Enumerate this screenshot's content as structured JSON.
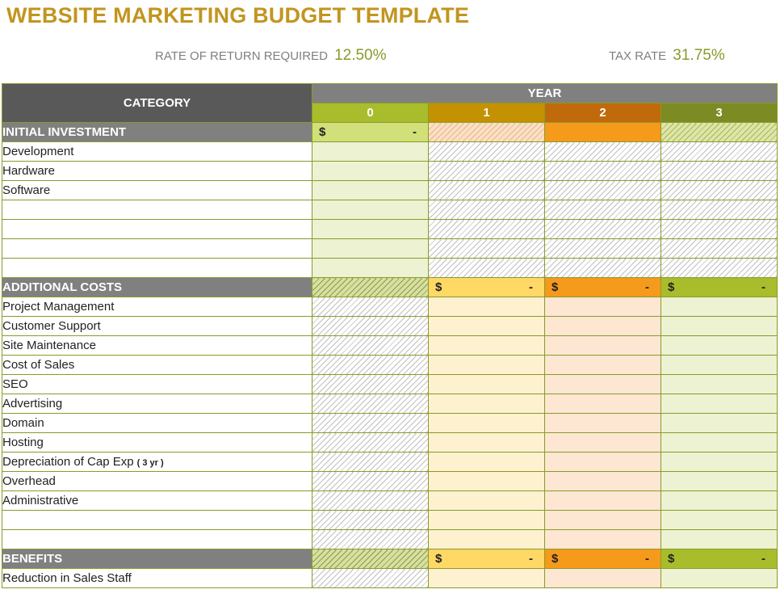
{
  "title": "WEBSITE MARKETING BUDGET TEMPLATE",
  "rate_of_return": {
    "label": "RATE OF RETURN REQUIRED",
    "value": "12.50%"
  },
  "tax_rate": {
    "label": "TAX RATE",
    "value": "31.75%"
  },
  "colors": {
    "title": "#C1951F",
    "year0": "#a9bd2c",
    "year1": "#c49100",
    "year2": "#c06a0b",
    "year3": "#7d8b24"
  },
  "table": {
    "category_header": "CATEGORY",
    "year_header": "YEAR",
    "years": [
      "0",
      "1",
      "2",
      "3"
    ],
    "currency": "$",
    "empty_amount": "-",
    "sections": {
      "initial": {
        "label": "INITIAL INVESTMENT",
        "rows": [
          "Development",
          "Hardware",
          "Software",
          "",
          "",
          "",
          ""
        ]
      },
      "additional": {
        "label": "ADDITIONAL COSTS",
        "rows": [
          "Project Management",
          "Customer Support",
          "Site Maintenance",
          "Cost of Sales",
          "SEO",
          "Advertising",
          "Domain",
          "Hosting",
          "Depreciation of Cap Exp",
          "Overhead",
          "Administrative",
          "",
          ""
        ],
        "depreciation_note": "( 3 yr )"
      },
      "benefits": {
        "label": "BENEFITS",
        "rows": [
          "Reduction in Sales Staff"
        ]
      }
    }
  }
}
